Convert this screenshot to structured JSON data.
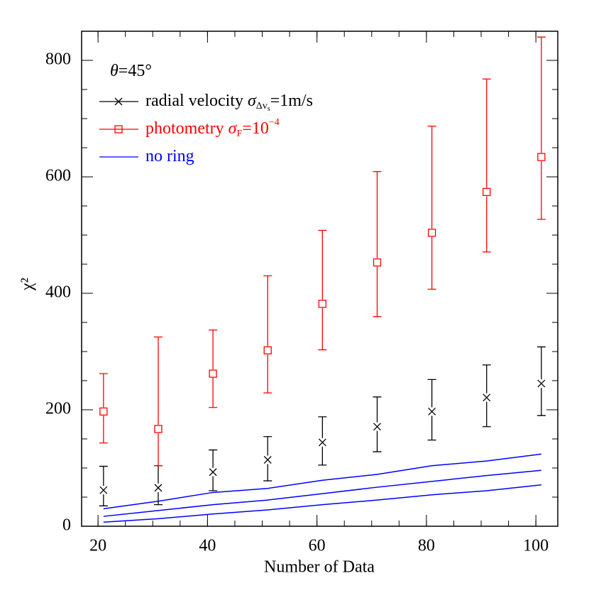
{
  "chart_data": {
    "type": "errorbar",
    "xlabel": "Number of Data",
    "ylabel": "χ²",
    "annotation": [
      {
        "text": "θ"
      },
      {
        "text": "=45°"
      }
    ],
    "x": [
      21,
      31,
      41,
      51,
      61,
      71,
      81,
      91,
      101
    ],
    "xlim": [
      17,
      104
    ],
    "ylim": [
      0,
      850
    ],
    "xticks": [
      20,
      40,
      60,
      80,
      100
    ],
    "yticks": [
      0,
      200,
      400,
      600,
      800
    ],
    "xminorticks": [
      20,
      25,
      30,
      35,
      40,
      45,
      50,
      55,
      60,
      65,
      70,
      75,
      80,
      85,
      90,
      95,
      100
    ],
    "yminorticks": [
      0,
      50,
      100,
      150,
      200,
      250,
      300,
      350,
      400,
      450,
      500,
      550,
      600,
      650,
      700,
      750,
      800,
      850
    ],
    "series": [
      {
        "name": "radial velocity ",
        "legend_math": [
          {
            "text": "σ"
          },
          {
            "text": "Δv",
            "script": "sub"
          },
          {
            "text": "s",
            "script": "subsub"
          },
          {
            "text": "=1m/s"
          }
        ],
        "color": "#000000",
        "marker": "x",
        "values": [
          62,
          66,
          93,
          114,
          144,
          171,
          197,
          221,
          245
        ],
        "lower": [
          35,
          37,
          61,
          78,
          105,
          128,
          148,
          171,
          190
        ],
        "upper": [
          103,
          104,
          131,
          154,
          188,
          222,
          252,
          277,
          308
        ]
      },
      {
        "name": "photometry ",
        "legend_math": [
          {
            "text": "σ"
          },
          {
            "text": "F",
            "script": "sub"
          },
          {
            "text": "=10"
          },
          {
            "text": "−4",
            "script": "sup"
          }
        ],
        "color": "#ff0000",
        "marker": "square",
        "values": [
          197,
          167,
          262,
          302,
          382,
          453,
          504,
          574,
          634
        ],
        "lower": [
          143,
          104,
          204,
          229,
          303,
          360,
          407,
          471,
          527
        ],
        "upper": [
          262,
          325,
          337,
          430,
          508,
          609,
          687,
          768,
          840
        ]
      },
      {
        "name": "no ring",
        "color": "#0000ff",
        "marker": "line",
        "lines": [
          [
            30,
            43,
            58,
            65,
            79,
            89,
            104,
            112,
            124
          ],
          [
            17,
            27,
            37,
            45,
            56,
            67,
            77,
            87,
            96
          ],
          [
            7,
            13,
            21,
            28,
            37,
            45,
            54,
            61,
            71
          ]
        ]
      }
    ]
  }
}
